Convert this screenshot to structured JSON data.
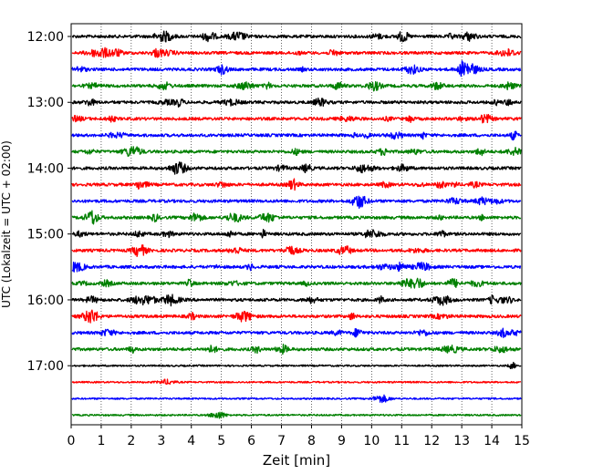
{
  "chart_data": {
    "type": "line",
    "title": "",
    "xlabel": "Zeit  [min]",
    "ylabel": "UTC (Lokalzeit = UTC + 02:00)",
    "xlim": [
      0,
      15
    ],
    "x_ticks": [
      0,
      1,
      2,
      3,
      4,
      5,
      6,
      7,
      8,
      9,
      10,
      11,
      12,
      13,
      14,
      15
    ],
    "y_ticks": [
      "12:00",
      "13:00",
      "14:00",
      "15:00",
      "16:00",
      "17:00"
    ],
    "grid": "vertical dotted at each minute",
    "trace_interval_min": 15,
    "traces": [
      {
        "start": "12:00",
        "color": "#000000"
      },
      {
        "start": "12:15",
        "color": "#ff0000"
      },
      {
        "start": "12:30",
        "color": "#0000ff"
      },
      {
        "start": "12:45",
        "color": "#008000"
      },
      {
        "start": "13:00",
        "color": "#000000"
      },
      {
        "start": "13:15",
        "color": "#ff0000"
      },
      {
        "start": "13:30",
        "color": "#0000ff"
      },
      {
        "start": "13:45",
        "color": "#008000"
      },
      {
        "start": "14:00",
        "color": "#000000"
      },
      {
        "start": "14:15",
        "color": "#ff0000"
      },
      {
        "start": "14:30",
        "color": "#0000ff"
      },
      {
        "start": "14:45",
        "color": "#008000"
      },
      {
        "start": "15:00",
        "color": "#000000"
      },
      {
        "start": "15:15",
        "color": "#ff0000"
      },
      {
        "start": "15:30",
        "color": "#0000ff"
      },
      {
        "start": "15:45",
        "color": "#008000"
      },
      {
        "start": "16:00",
        "color": "#000000"
      },
      {
        "start": "16:15",
        "color": "#ff0000"
      },
      {
        "start": "16:30",
        "color": "#0000ff"
      },
      {
        "start": "16:45",
        "color": "#008000"
      },
      {
        "start": "17:00",
        "color": "#000000"
      },
      {
        "start": "17:15",
        "color": "#ff0000"
      },
      {
        "start": "17:30",
        "color": "#0000ff"
      },
      {
        "start": "17:45",
        "color": "#008000"
      }
    ]
  }
}
